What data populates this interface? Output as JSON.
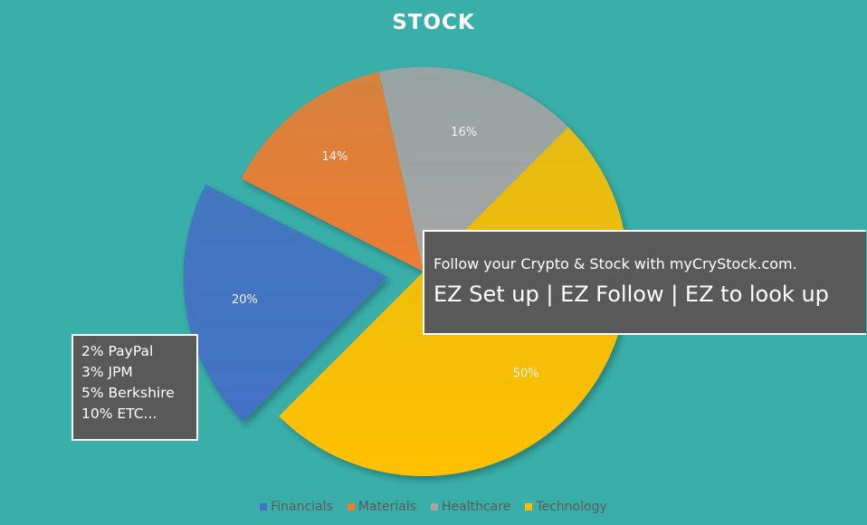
{
  "chart_data": {
    "type": "pie",
    "title": "STOCK",
    "categories": [
      "Financials",
      "Materials",
      "Healthcare",
      "Technology"
    ],
    "values": [
      20,
      14,
      16,
      50
    ],
    "labels": [
      "20%",
      "14%",
      "16%",
      "50%"
    ],
    "colors": [
      "#4472C4",
      "#ED7D31",
      "#A5A5A5",
      "#FFC000"
    ],
    "exploded": [
      "Financials"
    ],
    "legend_position": "bottom"
  },
  "promo": {
    "line1": "Follow your Crypto & Stock with myCryStock.com.",
    "line2": "EZ Set up | EZ Follow | EZ to look up"
  },
  "holdings": [
    "2% PayPal",
    "3% JPM",
    "5% Berkshire",
    "10% ETC..."
  ]
}
